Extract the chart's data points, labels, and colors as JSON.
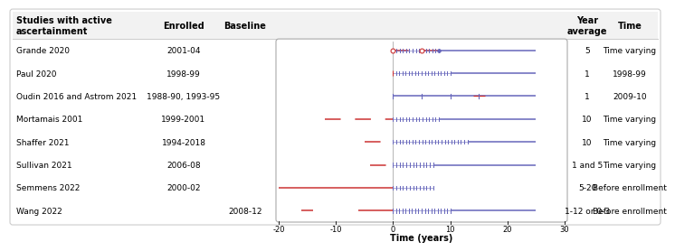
{
  "studies": [
    "Grande 2020",
    "Paul 2020",
    "Oudin 2016 and Astrom 2021",
    "Mortamais 2001",
    "Shaffer 2021",
    "Sullivan 2021",
    "Semmens 2022",
    "Wang 2022"
  ],
  "enrolled": [
    "2001-04",
    "1998-99",
    "1988-90, 1993-95",
    "1999-2001",
    "1994-2018",
    "2006-08",
    "2000-02",
    ""
  ],
  "baseline": [
    "",
    "",
    "",
    "",
    "",
    "",
    "",
    "2008-12"
  ],
  "year_average": [
    "5",
    "1",
    "1",
    "10",
    "10",
    "1 and 5",
    "5-20",
    "1-12 or 0-3"
  ],
  "time_col": [
    "Time varying",
    "1998-99",
    "2009-10",
    "Time varying",
    "Time varying",
    "Time varying",
    "Before enrollment",
    "Before enrollment"
  ],
  "x_min": -20,
  "x_max": 30,
  "xticks": [
    -20,
    -10,
    0,
    10,
    20,
    30
  ],
  "blue_color": "#6666bb",
  "red_color": "#cc3333",
  "header_bg": "#f2f2f2",
  "border_color": "#cccccc"
}
